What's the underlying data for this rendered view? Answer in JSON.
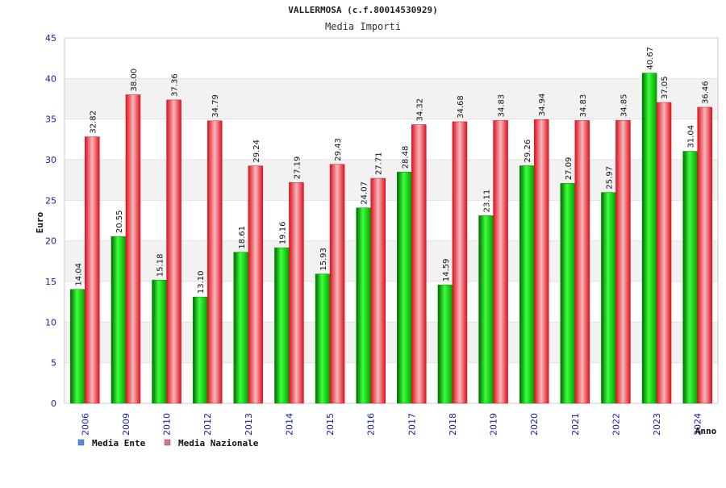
{
  "chart_data": {
    "type": "bar",
    "title": "VALLERMOSA (c.f.80014530929)",
    "subtitle": "Media Importi",
    "xlabel": "Anno",
    "ylabel": "Euro",
    "ylim": [
      0,
      45
    ],
    "yticks": [
      0,
      5,
      10,
      15,
      20,
      25,
      30,
      35,
      40,
      45
    ],
    "categories": [
      "2006",
      "2009",
      "2010",
      "2012",
      "2013",
      "2014",
      "2015",
      "2016",
      "2017",
      "2018",
      "2019",
      "2020",
      "2021",
      "2022",
      "2023",
      "2024"
    ],
    "series": [
      {
        "name": "Media Ente",
        "color": "#00b000",
        "legend_color": "#4d8fe6",
        "values": [
          14.04,
          20.55,
          15.18,
          13.1,
          18.61,
          19.16,
          15.93,
          24.07,
          28.48,
          14.59,
          23.11,
          29.26,
          27.09,
          25.97,
          40.67,
          31.04
        ],
        "labels": [
          "14.04",
          "20.55",
          "15.18",
          "13.10",
          "18.61",
          "19.16",
          "15.93",
          "24.07",
          "28.48",
          "14.59",
          "23.11",
          "29.26",
          "27.09",
          "25.97",
          "40.67",
          "31.04"
        ]
      },
      {
        "name": "Media Nazionale",
        "color": "#e8202a",
        "legend_color": "#e06fa0",
        "values": [
          32.82,
          38.0,
          37.36,
          34.79,
          29.24,
          27.19,
          29.43,
          27.71,
          34.32,
          34.68,
          34.83,
          34.94,
          34.83,
          34.85,
          37.05,
          36.46
        ],
        "labels": [
          "32.82",
          "38.00",
          "37.36",
          "34.79",
          "29.24",
          "27.19",
          "29.43",
          "27.71",
          "34.32",
          "34.68",
          "34.83",
          "34.94",
          "34.83",
          "34.85",
          "37.05",
          "36.46"
        ]
      }
    ],
    "legend_position": "bottom-left",
    "grid": true
  }
}
